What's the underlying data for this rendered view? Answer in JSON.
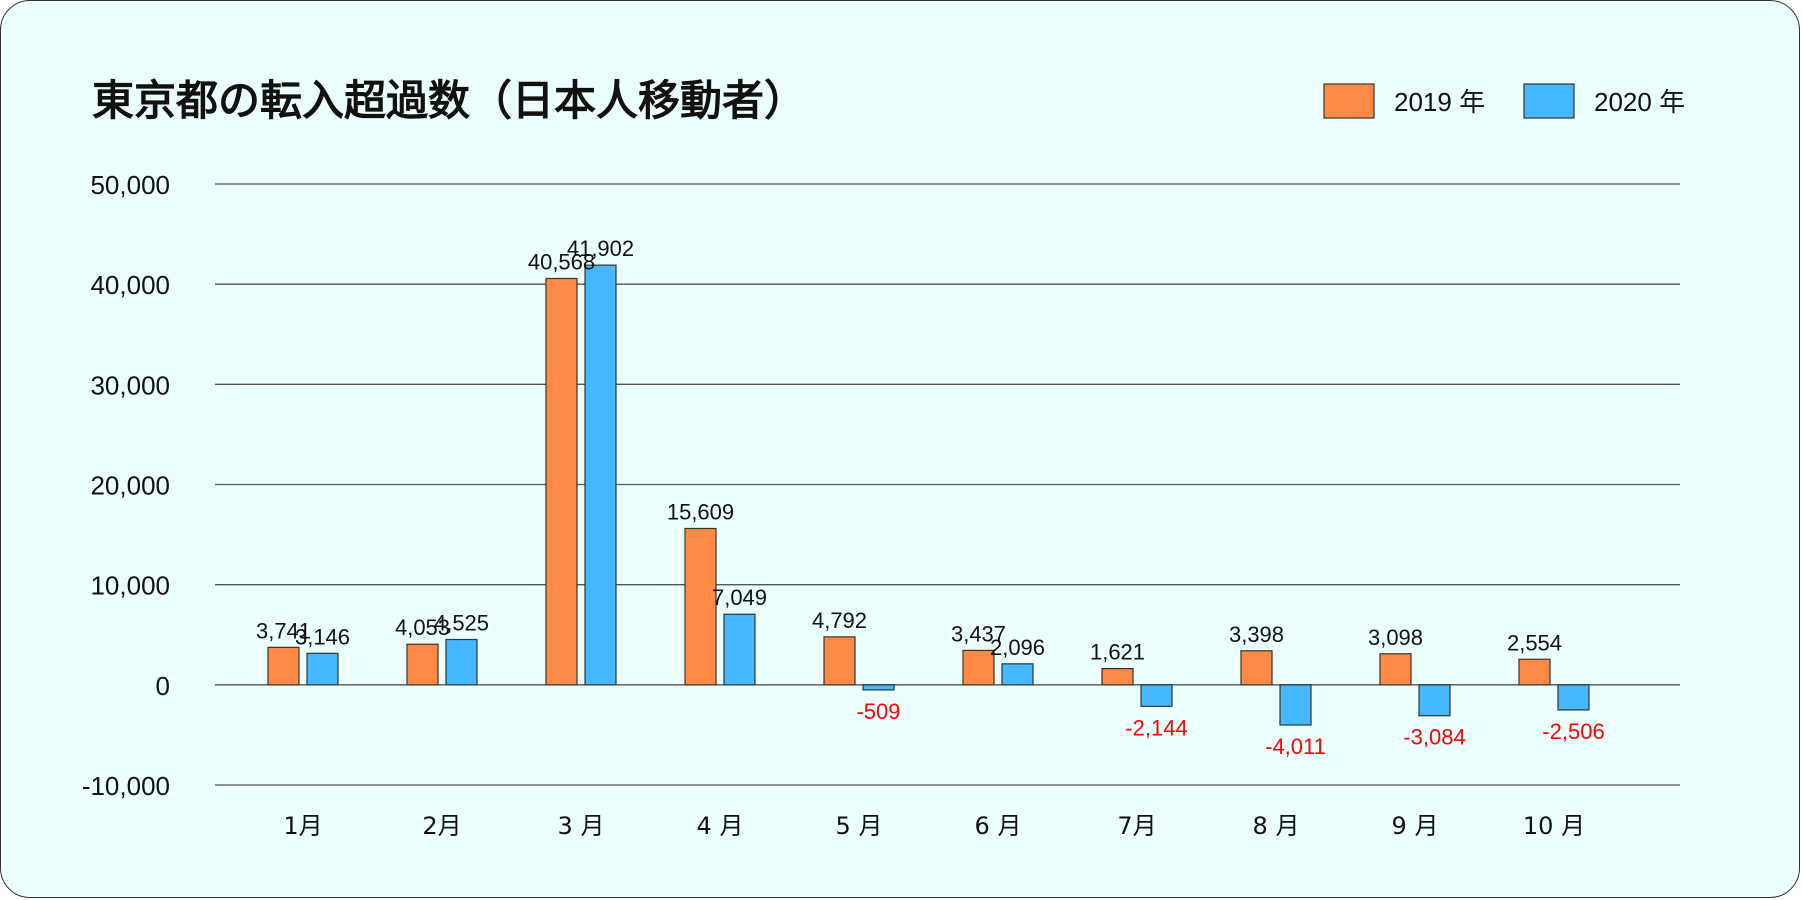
{
  "chart_data": {
    "type": "bar",
    "title": "東京都の転入超過数（日本人移動者）",
    "categories": [
      "1月",
      "2月",
      "3 月",
      "4 月",
      "5 月",
      "6 月",
      "7月",
      "8 月",
      "9 月",
      "10 月"
    ],
    "series": [
      {
        "name": "2019 年",
        "color": "#ff8a47",
        "values": [
          3741,
          4053,
          40568,
          15609,
          4792,
          3437,
          1621,
          3398,
          3098,
          2554
        ]
      },
      {
        "name": "2020 年",
        "color": "#45b8ff",
        "values": [
          3146,
          4525,
          41902,
          7049,
          -509,
          2096,
          -2144,
          -4011,
          -3084,
          -2506
        ]
      }
    ],
    "value_labels": [
      [
        "3,741",
        "4,053",
        "40,568",
        "15,609",
        "4,792",
        "3,437",
        "1,621",
        "3,398",
        "3,098",
        "2,554"
      ],
      [
        "3,146",
        "4,525",
        "41,902",
        "7,049",
        "-509",
        "2,096",
        "-2,144",
        "-4,011",
        "-3,084",
        "-2,506"
      ]
    ],
    "ylim": [
      -10000,
      50000
    ],
    "yticks": [
      50000,
      40000,
      30000,
      20000,
      10000,
      0,
      -10000
    ],
    "ytick_labels": [
      "50,000",
      "40,000",
      "30,000",
      "20,000",
      "10,000",
      "0",
      "-10,000"
    ],
    "negative_color": "#ff0000",
    "grid": true,
    "legend_position": "top-right"
  }
}
